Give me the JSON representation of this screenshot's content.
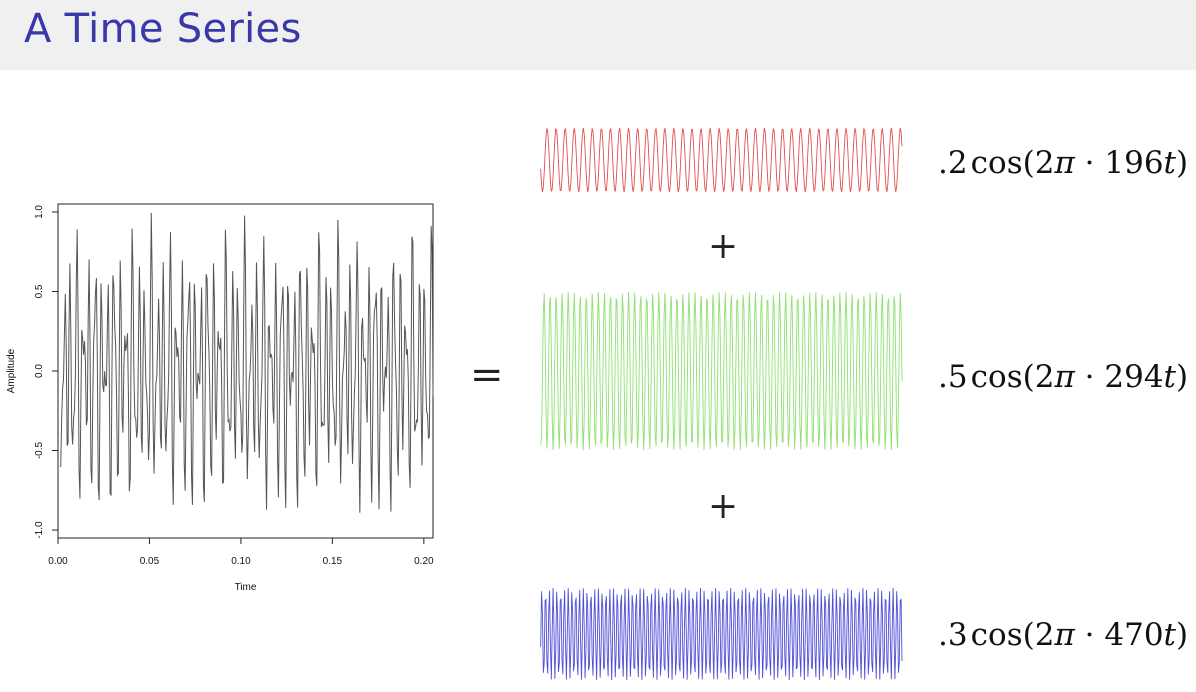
{
  "slide": {
    "title": "A Time Series",
    "equals": "=",
    "plus": "+"
  },
  "chart_data": [
    {
      "type": "line",
      "title": "",
      "xlabel": "Time",
      "ylabel": "Amplitude",
      "xlim": [
        0,
        0.205
      ],
      "ylim": [
        -1.05,
        1.05
      ],
      "x_ticks": [
        "0.00",
        "0.05",
        "0.10",
        "0.15",
        "0.20"
      ],
      "y_ticks": [
        "-1.0",
        "-0.5",
        "0.0",
        "0.5",
        "1.0"
      ],
      "line_color": "#555555",
      "grid": false,
      "series": [
        {
          "components": [
            {
              "amplitude": 0.2,
              "frequency": 196
            },
            {
              "amplitude": 0.5,
              "frequency": 294
            },
            {
              "amplitude": 0.3,
              "frequency": 470
            }
          ]
        }
      ]
    },
    {
      "type": "line",
      "axes": false,
      "series": [
        {
          "formula": ".2 cos(2π · 196t)",
          "amplitude": 0.2,
          "frequency": 196,
          "color": "#e05050"
        }
      ]
    },
    {
      "type": "line",
      "axes": false,
      "series": [
        {
          "formula": ".5 cos(2π · 294t)",
          "amplitude": 0.5,
          "frequency": 294,
          "color": "#90e070"
        }
      ]
    },
    {
      "type": "line",
      "axes": false,
      "series": [
        {
          "formula": ".3 cos(2π · 470t)",
          "amplitude": 0.3,
          "frequency": 470,
          "color": "#5050d8"
        }
      ]
    }
  ],
  "formulas": [
    {
      "coef": ".2",
      "fn": "cos",
      "open": "(2",
      "pi": "π",
      "dot": " · ",
      "freq": "196",
      "var": "t",
      "close": ")"
    },
    {
      "coef": ".5",
      "fn": "cos",
      "open": "(2",
      "pi": "π",
      "dot": " · ",
      "freq": "294",
      "var": "t",
      "close": ")"
    },
    {
      "coef": ".3",
      "fn": "cos",
      "open": "(2",
      "pi": "π",
      "dot": " · ",
      "freq": "470",
      "var": "t",
      "close": ")"
    }
  ]
}
